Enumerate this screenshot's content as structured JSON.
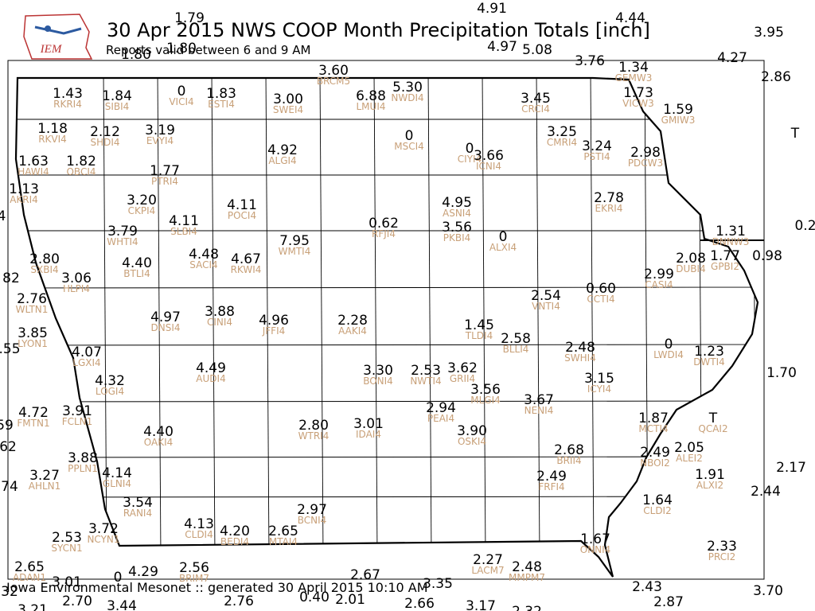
{
  "title": "30 Apr 2015 NWS COOP Month Precipitation Totals [inch]",
  "subtitle": "Reports valid between 6 and 9 AM",
  "logo": "IEM",
  "footer": "Iowa Environmental Mesonet :: generated 30 April 2015 10:10 AM",
  "stations": [
    {
      "value": "1.79"
    },
    {
      "value": "4.91"
    },
    {
      "value": "4.44"
    },
    {
      "value": "3.95"
    },
    {
      "value": "4.97"
    },
    {
      "value": "5.08"
    },
    {
      "value": "3.76"
    },
    {
      "value": "1.80"
    },
    {
      "value": "1.80"
    },
    {
      "value": "4.27"
    },
    {
      "value": "2.86"
    },
    {
      "value": "3.60",
      "id": "BRCM5"
    },
    {
      "value": "1.34",
      "id": "GEMW3"
    },
    {
      "value": "1.73",
      "id": "VICW3"
    },
    {
      "value": "1.59",
      "id": "GMIW3"
    },
    {
      "value": "T"
    },
    {
      "value": "1.43",
      "id": "RKRI4"
    },
    {
      "value": "1.84",
      "id": "SIBI4"
    },
    {
      "value": "0",
      "id": "VICI4"
    },
    {
      "value": "1.83",
      "id": "ESTI4"
    },
    {
      "value": "3.00",
      "id": "SWEI4"
    },
    {
      "value": "6.88",
      "id": "LMUI4"
    },
    {
      "value": "5.30",
      "id": "NWDI4"
    },
    {
      "value": "3.45",
      "id": "CRCI4"
    },
    {
      "value": "1.18",
      "id": "RKVI4"
    },
    {
      "value": "2.12",
      "id": "SHDI4"
    },
    {
      "value": "3.19",
      "id": "EVYI4"
    },
    {
      "value": "0",
      "id": "MSCI4"
    },
    {
      "value": "3.25",
      "id": "CMRI4"
    },
    {
      "value": "4.92",
      "id": "ALGI4"
    },
    {
      "value": "0",
      "id": "CIYI4"
    },
    {
      "value": "3.66",
      "id": "ICNI4"
    },
    {
      "value": "3.24",
      "id": "PSTI4"
    },
    {
      "value": "2.98",
      "id": "PDCW3"
    },
    {
      "value": "1.63",
      "id": "HAWI4"
    },
    {
      "value": "1.82",
      "id": "OBCI4"
    },
    {
      "value": "1.77",
      "id": "PTRI4"
    },
    {
      "value": "1.13",
      "id": "AKRI4"
    },
    {
      "value": "3.20",
      "id": "CKPI4"
    },
    {
      "value": "4.11",
      "id": "POCI4"
    },
    {
      "value": "4.95",
      "id": "ASNI4"
    },
    {
      "value": "2.78",
      "id": "EKRI4"
    },
    {
      "value": "4"
    },
    {
      "value": "4.11",
      "id": "SLBI4"
    },
    {
      "value": "0.62",
      "id": "RFJI4"
    },
    {
      "value": "3.56",
      "id": "PKBI4"
    },
    {
      "value": "3.79",
      "id": "WHTI4"
    },
    {
      "value": "0",
      "id": "ALXI4"
    },
    {
      "value": "1.31",
      "id": "DNNW3"
    },
    {
      "value": "0.2"
    },
    {
      "value": "7.95",
      "id": "WMTI4"
    },
    {
      "value": "4.48",
      "id": "SACI4"
    },
    {
      "value": "4.67",
      "id": "RKWI4"
    },
    {
      "value": "4.40",
      "id": "BTLI4"
    },
    {
      "value": "2.80",
      "id": "SXBI4"
    },
    {
      "value": "2.08",
      "id": "DUBI4"
    },
    {
      "value": "1.77",
      "id": "GPBI2"
    },
    {
      "value": "0.98"
    },
    {
      "value": "2.99",
      "id": "CASI4"
    },
    {
      "value": "82"
    },
    {
      "value": "3.06",
      "id": "HLPI4"
    },
    {
      "value": "0.60",
      "id": "CCTI4"
    },
    {
      "value": "2.54",
      "id": "VNTI4"
    },
    {
      "value": "2.76",
      "id": "WLTN1"
    },
    {
      "value": "4.97",
      "id": "DNSI4"
    },
    {
      "value": "3.88",
      "id": "CINI4"
    },
    {
      "value": "4.96",
      "id": "JFFI4"
    },
    {
      "value": "2.28",
      "id": "AAKI4"
    },
    {
      "value": "1.45",
      "id": "TLDI4"
    },
    {
      "value": "3.85",
      "id": "LYON1"
    },
    {
      "value": ".55"
    },
    {
      "value": "2.58",
      "id": "BLLI4"
    },
    {
      "value": "2.48",
      "id": "SWHI4"
    },
    {
      "value": "0",
      "id": "LWDI4"
    },
    {
      "value": "1.23",
      "id": "DWTI4"
    },
    {
      "value": "4.07",
      "id": "LGXI4"
    },
    {
      "value": "1.70"
    },
    {
      "value": "4.49",
      "id": "AUDI4"
    },
    {
      "value": "3.30",
      "id": "BONI4"
    },
    {
      "value": "2.53",
      "id": "NWTI4"
    },
    {
      "value": "3.62",
      "id": "GRII4"
    },
    {
      "value": "3.56",
      "id": "MLGI4"
    },
    {
      "value": "3.15",
      "id": "ICYI4"
    },
    {
      "value": "4.32",
      "id": "LOGI4"
    },
    {
      "value": "3.67",
      "id": "NENI4"
    },
    {
      "value": "4.72",
      "id": "FMTN1"
    },
    {
      "value": "3.91",
      "id": "FCLN1"
    },
    {
      "value": "59"
    },
    {
      "value": "2.94",
      "id": "PEAI4"
    },
    {
      "value": "1.87",
      "id": "MCTI4"
    },
    {
      "value": "T",
      "id": "QCAI2"
    },
    {
      "value": "2.80",
      "id": "WTRI4"
    },
    {
      "value": "3.01",
      "id": "IDAI4"
    },
    {
      "value": "3.90",
      "id": "OSKI4"
    },
    {
      "value": "4.40",
      "id": "OAKI4"
    },
    {
      "value": "62"
    },
    {
      "value": "2.05",
      "id": "ALEI2"
    },
    {
      "value": "2.68",
      "id": "BRII4"
    },
    {
      "value": "2.49",
      "id": "NBOI2"
    },
    {
      "value": "3.88",
      "id": "PPLN1"
    },
    {
      "value": "2.17"
    },
    {
      "value": "3.27",
      "id": "AHLN1"
    },
    {
      "value": "1.91",
      "id": "ALXI2"
    },
    {
      "value": "4.14",
      "id": "GLNI4"
    },
    {
      "value": "2.49",
      "id": "FRFI4"
    },
    {
      "value": "74"
    },
    {
      "value": "2.44"
    },
    {
      "value": "3.54",
      "id": "RANI4"
    },
    {
      "value": "1.64",
      "id": "CLDI2"
    },
    {
      "value": "2.97",
      "id": "BCNI4"
    },
    {
      "value": "4.13",
      "id": "CLDI4"
    },
    {
      "value": "4.20",
      "id": "BEDI4"
    },
    {
      "value": "2.65",
      "id": "MTAI4"
    },
    {
      "value": "3.72",
      "id": "NCYN1"
    },
    {
      "value": "2.53",
      "id": "SYCN1"
    },
    {
      "value": "1.67",
      "id": "ONNI4"
    },
    {
      "value": "2.33",
      "id": "PRCI2"
    },
    {
      "value": "2.27",
      "id": "LACM7"
    },
    {
      "value": "2.48",
      "id": "MMPM7"
    },
    {
      "value": "2.65",
      "id": "ADAN1"
    },
    {
      "value": "4.29"
    },
    {
      "value": "2.56",
      "id": "BRIM7"
    },
    {
      "value": "2.67"
    },
    {
      "value": "3.01"
    },
    {
      "value": "0"
    },
    {
      "value": "3.35"
    },
    {
      "value": "2.43"
    },
    {
      "value": "32"
    },
    {
      "value": "3.70"
    },
    {
      "value": "2.70"
    },
    {
      "value": "3.44"
    },
    {
      "value": "2.76"
    },
    {
      "value": "0.40"
    },
    {
      "value": "2.01"
    },
    {
      "value": "2.66"
    },
    {
      "value": "3.17"
    },
    {
      "value": "2.87"
    },
    {
      "value": "3.21"
    },
    {
      "value": "2.32"
    }
  ]
}
